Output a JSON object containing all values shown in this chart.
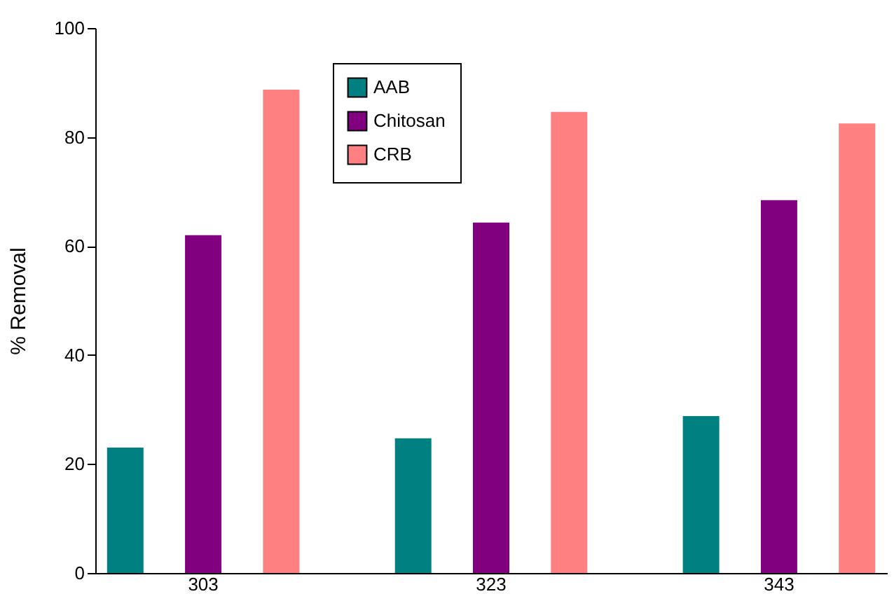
{
  "chart_data": {
    "type": "bar",
    "ylabel": "% Removal",
    "categories": [
      "303",
      "323",
      "343"
    ],
    "series": [
      {
        "name": "AAB",
        "color": "#008080",
        "values": [
          23,
          24.7,
          28.8
        ]
      },
      {
        "name": "Chitosan",
        "color": "#800080",
        "values": [
          62,
          64.3,
          68.4
        ]
      },
      {
        "name": "CRB",
        "color": "#ff8080",
        "values": [
          88.7,
          84.6,
          82.5
        ]
      }
    ],
    "ylim": [
      0,
      100
    ],
    "yticks": [
      0,
      20,
      40,
      60,
      80,
      100
    ],
    "grid": false,
    "legend": "top"
  }
}
